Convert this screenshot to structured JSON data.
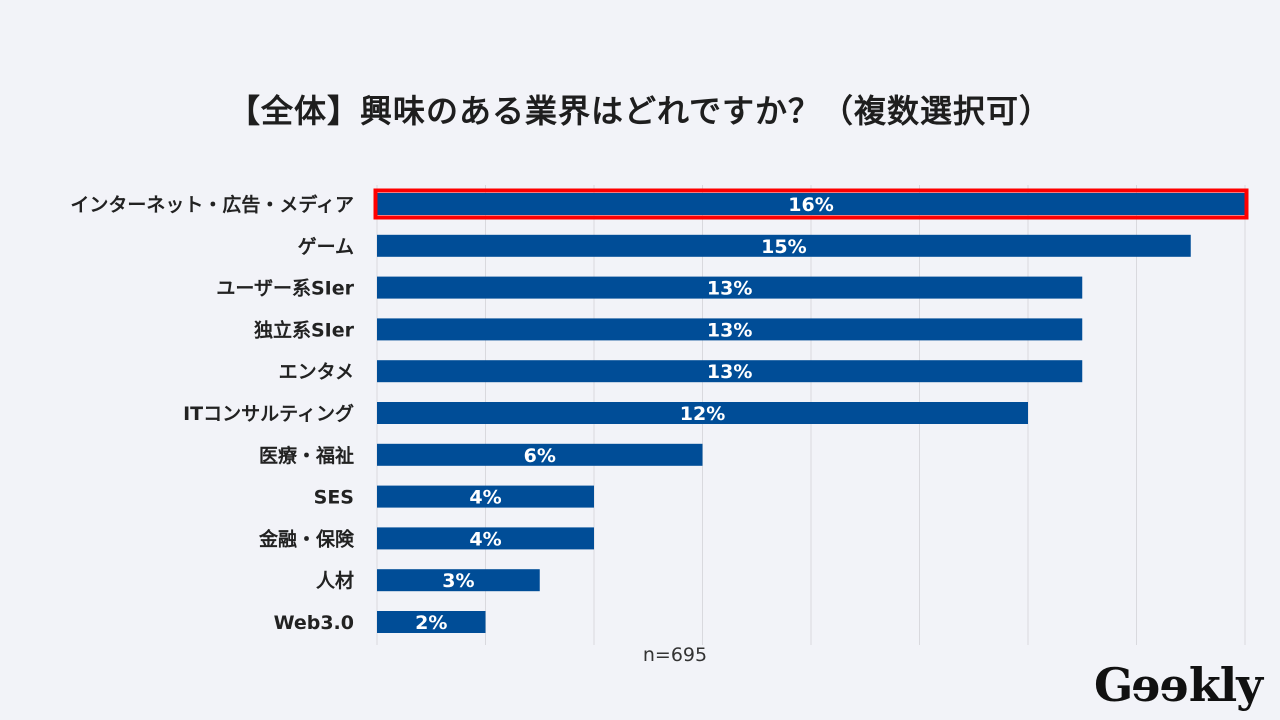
{
  "chart_data": {
    "type": "bar",
    "orientation": "horizontal",
    "title": "【全体】興味のある業界はどれですか？（複数選択可）",
    "categories": [
      "インターネット・広告・メディア",
      "ゲーム",
      "ユーザー系SIer",
      "独立系SIer",
      "エンタメ",
      "ITコンサルティング",
      "医療・福祉",
      "SES",
      "金融・保険",
      "人材",
      "Web3.0"
    ],
    "values": [
      16,
      15,
      13,
      13,
      13,
      12,
      6,
      4,
      4,
      3,
      2
    ],
    "value_labels": [
      "16%",
      "15%",
      "13%",
      "13%",
      "13%",
      "12%",
      "6%",
      "4%",
      "4%",
      "3%",
      "2%"
    ],
    "unit": "%",
    "xlim": [
      0,
      16
    ],
    "grid_step": 2,
    "grid": true,
    "highlighted_index": 0,
    "note": "n=695",
    "xlabel": "",
    "ylabel": ""
  },
  "colors": {
    "bar": "#004d97",
    "highlight_border": "#ff0000",
    "grid": "#d9d9de",
    "background": "#f2f3f8"
  },
  "logo": {
    "prefix": "G",
    "reversed": "ee",
    "suffix": "kly"
  }
}
